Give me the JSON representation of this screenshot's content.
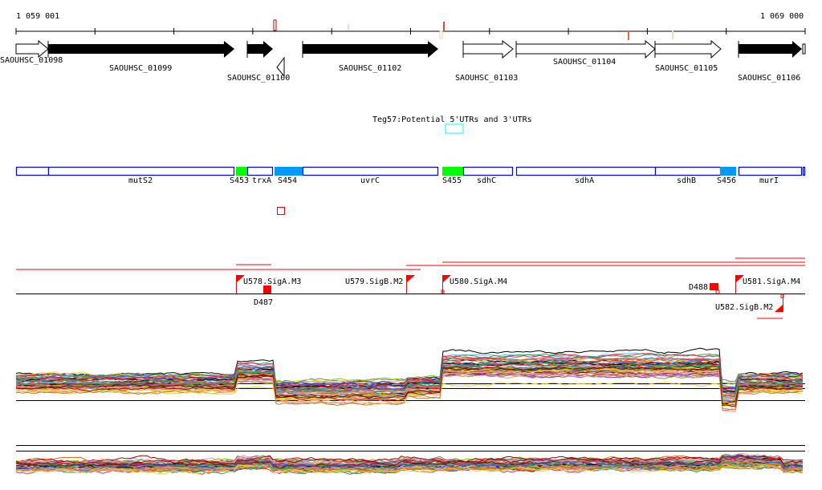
{
  "ruler": {
    "start_label": "1 059 001",
    "end_label": "1 069 000"
  },
  "genes": [
    {
      "id": "SAOUHSC_01098",
      "strand": "+",
      "fill": "white"
    },
    {
      "id": "SAOUHSC_01099",
      "strand": "+",
      "fill": "black"
    },
    {
      "id": "SAOUHSC_01100",
      "strand": "-",
      "fill": "white"
    },
    {
      "id": "SAOUHSC_01102",
      "strand": "+",
      "fill": "black"
    },
    {
      "id": "SAOUHSC_01103",
      "strand": "+",
      "fill": "white"
    },
    {
      "id": "SAOUHSC_01104",
      "strand": "+",
      "fill": "white"
    },
    {
      "id": "SAOUHSC_01105",
      "strand": "+",
      "fill": "white"
    },
    {
      "id": "SAOUHSC_01106",
      "strand": "+",
      "fill": "black"
    }
  ],
  "utr_track": {
    "label": "Teg57:Potential 5'UTRs and 3'UTRs",
    "color": "#00ffff"
  },
  "annotations": [
    {
      "label": "mutS2"
    },
    {
      "label": "S453"
    },
    {
      "label": "trxA"
    },
    {
      "label": "S454"
    },
    {
      "label": "uvrC"
    },
    {
      "label": "S455"
    },
    {
      "label": "sdhC"
    },
    {
      "label": "sdhA"
    },
    {
      "label": "sdhB"
    },
    {
      "label": "S456"
    },
    {
      "label": "murI"
    }
  ],
  "promoters": [
    {
      "label": "U578.SigA.M3"
    },
    {
      "label": "D487"
    },
    {
      "label": "U579.SigB.M2"
    },
    {
      "label": "U580.SigA.M4"
    },
    {
      "label": "D488"
    },
    {
      "label": "U581.SigA.M4"
    },
    {
      "label": "U582.SigB.M2"
    }
  ],
  "colors": {
    "annot_outline": "#0000ff",
    "srna_green": "#00ff00",
    "srna_blue": "#0099ff",
    "promoter": "#ff0000"
  },
  "expression_colors": [
    "#000000",
    "#66bbee",
    "#88cc00",
    "#cc6622",
    "#aa8833",
    "#dd3355",
    "#993399",
    "#ee7744",
    "#cc99cc",
    "#777777",
    "#22aa44",
    "#ff9999",
    "#552200",
    "#ffcc33",
    "#aa0000",
    "#3366cc"
  ]
}
